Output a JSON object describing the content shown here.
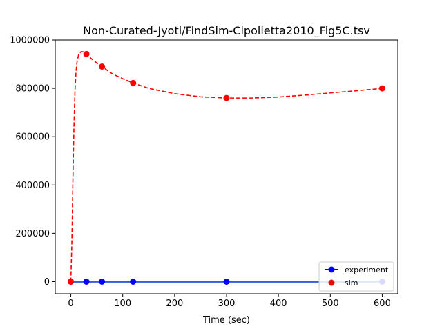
{
  "chart_data": {
    "type": "line",
    "title": "Non-Curated-Jyoti/FindSim-Cipolletta2010_Fig5C.tsv",
    "xlabel": "Time (sec)",
    "ylabel": "",
    "xlim": [
      -30,
      630
    ],
    "ylim": [
      -50000,
      1000000
    ],
    "xticks": [
      0,
      100,
      200,
      300,
      400,
      500,
      600
    ],
    "yticks": [
      0,
      200000,
      400000,
      600000,
      800000,
      1000000
    ],
    "xtick_labels": [
      "0",
      "100",
      "200",
      "300",
      "400",
      "500",
      "600"
    ],
    "ytick_labels": [
      "0",
      "200000",
      "400000",
      "600000",
      "800000",
      "1000000"
    ],
    "grid": false,
    "legend_position": "lower-right",
    "legend": [
      {
        "label": "experiment",
        "color": "#0000ff",
        "style": "line-marker"
      },
      {
        "label": "sim",
        "color": "#ff0000",
        "style": "marker"
      }
    ],
    "series": [
      {
        "name": "experiment",
        "color": "#0000ff",
        "x": [
          0,
          30,
          60,
          120,
          300,
          600
        ],
        "y": [
          0,
          0,
          0,
          0,
          0,
          0
        ]
      },
      {
        "name": "sim",
        "color": "#ff0000",
        "x": [
          0,
          30,
          60,
          120,
          300,
          600
        ],
        "y": [
          0,
          942000,
          890000,
          822000,
          760000,
          800000
        ]
      }
    ],
    "sim_curve": {
      "color": "#ff0000",
      "x": [
        0,
        2,
        4,
        6,
        8,
        10,
        12,
        15,
        20,
        25,
        30,
        40,
        50,
        60,
        80,
        100,
        120,
        150,
        200,
        250,
        300,
        350,
        400,
        450,
        500,
        550,
        600
      ],
      "y": [
        0,
        160000,
        420000,
        640000,
        790000,
        870000,
        910000,
        940000,
        952000,
        950000,
        942000,
        922000,
        905000,
        890000,
        860000,
        840000,
        822000,
        800000,
        778000,
        765000,
        760000,
        760000,
        764000,
        772000,
        781000,
        790000,
        800000
      ]
    }
  }
}
